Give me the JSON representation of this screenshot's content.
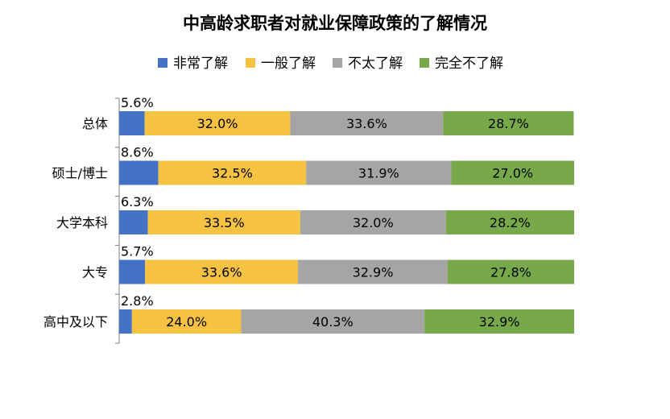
{
  "chart_data": {
    "type": "bar",
    "orientation": "horizontal",
    "stacked": true,
    "percent_stacked": true,
    "title": "中高龄求职者对就业保障政策的了解情况",
    "categories": [
      "总体",
      "硕士/博士",
      "大学本科",
      "大专",
      "高中及以下"
    ],
    "series": [
      {
        "name": "非常了解",
        "color": "#4472C4",
        "values": [
          5.6,
          8.6,
          6.3,
          5.7,
          2.8
        ],
        "labels": [
          "5.6%",
          "8.6%",
          "6.3%",
          "5.7%",
          "2.8%"
        ]
      },
      {
        "name": "一般了解",
        "color": "#F5C242",
        "values": [
          32.0,
          32.5,
          33.5,
          33.6,
          24.0
        ],
        "labels": [
          "32.0%",
          "32.5%",
          "33.5%",
          "33.6%",
          "24.0%"
        ]
      },
      {
        "name": "不太了解",
        "color": "#A5A5A5",
        "values": [
          33.6,
          31.9,
          32.0,
          32.9,
          40.3
        ],
        "labels": [
          "33.6%",
          "31.9%",
          "32.0%",
          "32.9%",
          "40.3%"
        ]
      },
      {
        "name": "完全不了解",
        "color": "#77A94A",
        "values": [
          28.7,
          27.0,
          28.2,
          27.8,
          32.9
        ],
        "labels": [
          "28.7%",
          "27.0%",
          "28.2%",
          "27.8%",
          "32.9%"
        ]
      }
    ],
    "xlim": [
      0,
      100
    ],
    "legend": "top",
    "grid": false
  }
}
